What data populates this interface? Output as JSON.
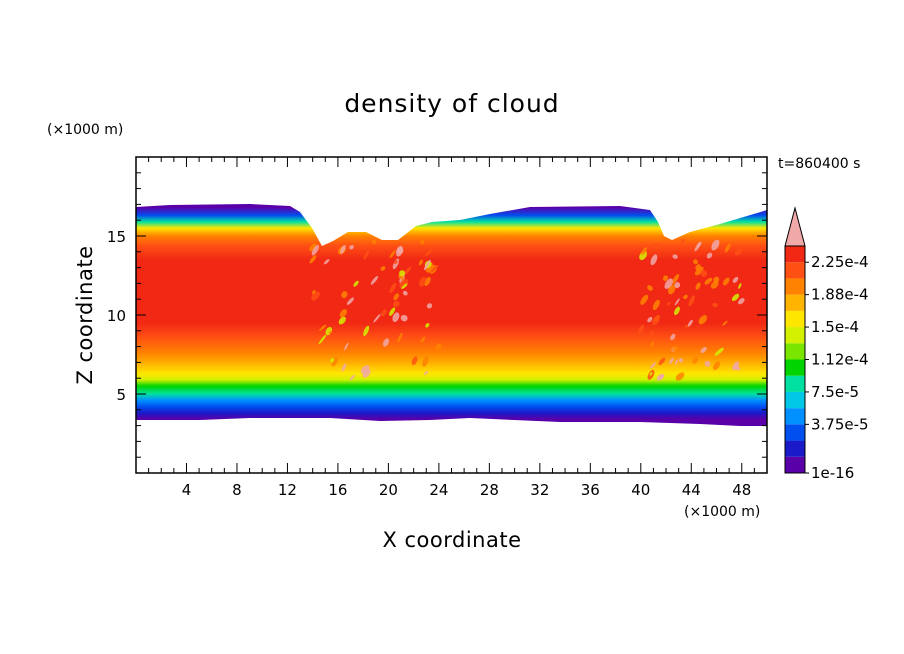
{
  "chart_data": {
    "type": "heatmap",
    "title": "density of cloud",
    "time_label": "t=860400 s",
    "xlabel": "X coordinate",
    "ylabel": "Z coordinate",
    "x_unit": "(×1000 m)",
    "y_unit": "(×1000 m)",
    "xlim": [
      0,
      50
    ],
    "ylim": [
      0,
      20
    ],
    "x_ticks": [
      "4",
      "8",
      "12",
      "16",
      "20",
      "24",
      "28",
      "32",
      "36",
      "40",
      "44",
      "48"
    ],
    "y_ticks": [
      "5",
      "10",
      "15"
    ],
    "colorbar": {
      "labels": [
        "2.25e-4",
        "1.88e-4",
        "1.5e-4",
        "1.12e-4",
        "7.5e-5",
        "3.75e-5",
        "1e-16"
      ],
      "colors": [
        "#5a00a8",
        "#1a1ac8",
        "#0050f0",
        "#0090ff",
        "#00c8e6",
        "#00e0a0",
        "#00d400",
        "#7ae600",
        "#d2f000",
        "#ffe600",
        "#ffb400",
        "#ff8200",
        "#ff5014",
        "#f02814",
        "#f0a8a8"
      ]
    },
    "cloud_layer": {
      "base_z": 3.5,
      "top_z": 16.7,
      "core_z_range": [
        8.5,
        14.5
      ],
      "core_level": "2.25e-4",
      "regions_of_turbulence_x": [
        [
          14,
          24
        ],
        [
          40,
          48
        ]
      ]
    }
  }
}
